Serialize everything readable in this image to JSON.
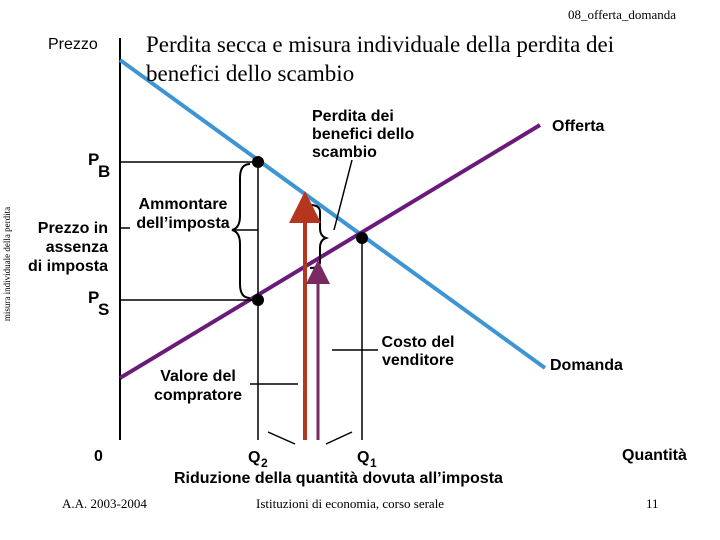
{
  "header": {
    "file_label": "08_offerta_domanda",
    "side_label": "misura individuale della perdita"
  },
  "chart_data": {
    "type": "line",
    "title": "Perdita secca e misura individuale della perdita dei benefici dello scambio",
    "ylabel": "Prezzo",
    "xlabel": "Quantità",
    "origin_label": "0",
    "series": [
      {
        "name": "Offerta",
        "color": "#6a1b7a"
      },
      {
        "name": "Domanda",
        "color": "#3d95d4"
      }
    ],
    "price_labels": {
      "pb_main": "P",
      "pb_sub": "B",
      "ps_main": "P",
      "ps_sub": "S",
      "no_tax": "Prezzo in\nassenza\ndi imposta"
    },
    "quantity_labels": {
      "q2_main": "Q",
      "q2_sub": "2",
      "q1_main": "Q",
      "q1_sub": "1"
    },
    "annotations": {
      "tax_amount": "Ammontare\ndell’imposta",
      "lost_surplus": "Perdita dei\nbenefici dello\nscambio",
      "buyer_value": "Valore del\ncompratore",
      "seller_cost": "Costo del\nvenditore",
      "quantity_reduction": "Riduzione della quantità dovuta all’imposta"
    },
    "colors": {
      "supply": "#6a1b7a",
      "demand": "#3d95d4",
      "arrow_red": "#b5361c",
      "arrow_purple": "#7a2a63"
    }
  },
  "footer": {
    "left": "A.A. 2003-2004",
    "center": "Istituzioni di economia, corso serale",
    "page": "11"
  }
}
